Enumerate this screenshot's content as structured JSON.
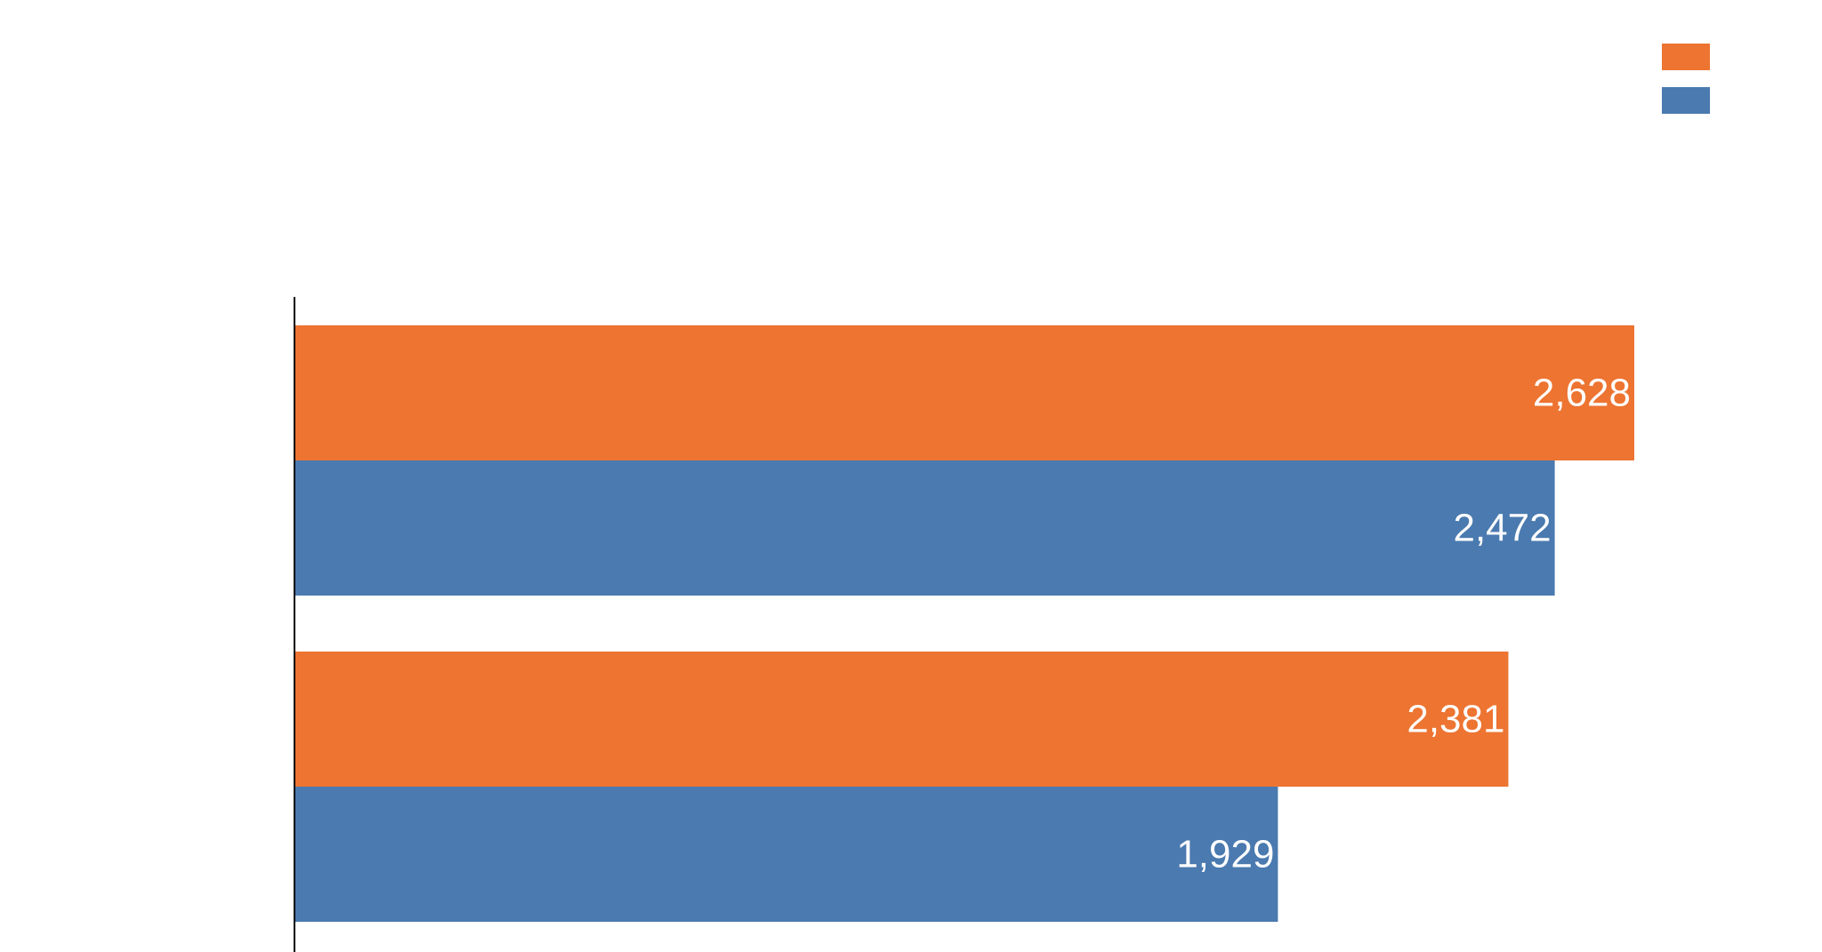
{
  "chart_data": {
    "type": "bar",
    "orientation": "horizontal",
    "title": "",
    "xlabel": "",
    "ylabel": "",
    "categories": [
      "",
      ""
    ],
    "series": [
      {
        "color": "#ED7431",
        "values": [
          2628,
          2381
        ],
        "labels": [
          "2,628",
          "2,381"
        ]
      },
      {
        "color": "#4A7AAF",
        "values": [
          2472,
          1929
        ],
        "labels": [
          "2,472",
          "1,929"
        ]
      }
    ],
    "xlim": [
      0,
      2628
    ],
    "grid": false,
    "legend": "top-right"
  }
}
